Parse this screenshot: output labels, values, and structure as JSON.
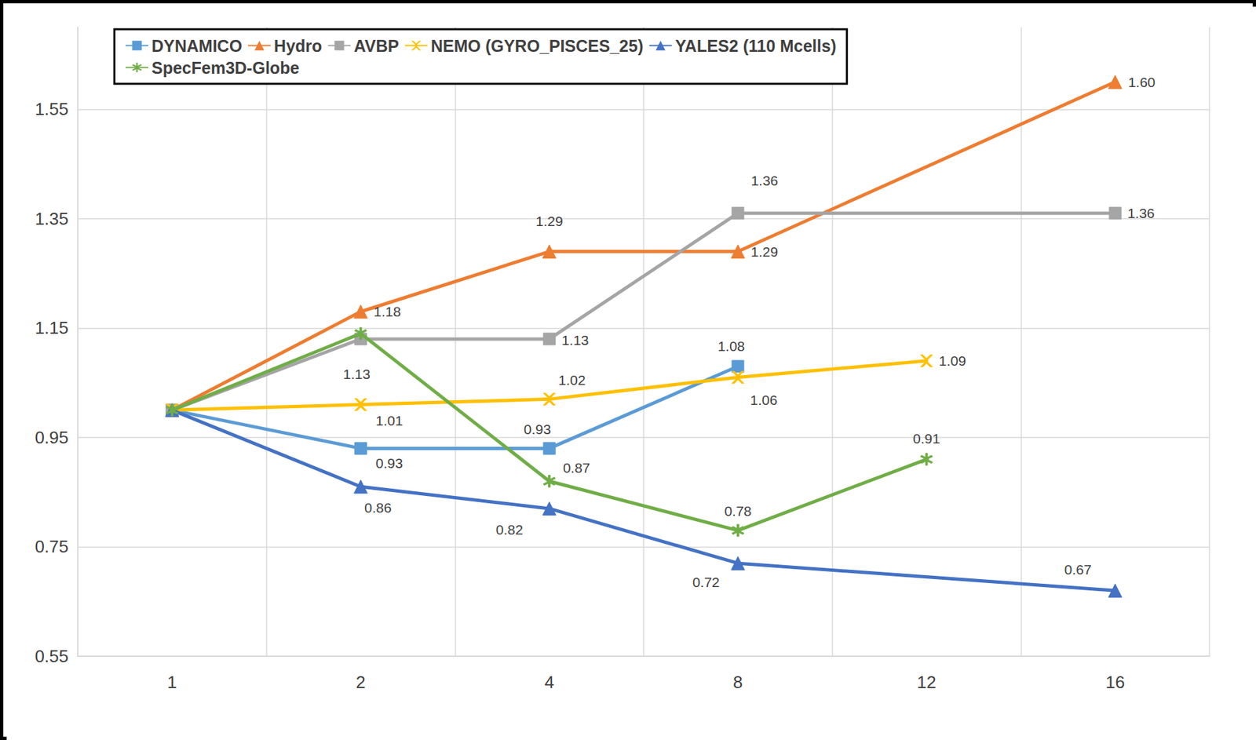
{
  "chart_data": {
    "type": "line",
    "categories": [
      "1",
      "2",
      "4",
      "8",
      "12",
      "16"
    ],
    "ylim": [
      0.55,
      1.7
    ],
    "yticks": [
      0.55,
      0.75,
      0.95,
      1.15,
      1.35,
      1.55
    ],
    "grid": true,
    "legend": "top",
    "data_labels": true,
    "series": [
      {
        "name": "DYNAMICO",
        "color": "#5b9bd5",
        "marker": "square",
        "values": [
          1.0,
          0.93,
          0.93,
          1.08,
          null,
          null
        ],
        "value_labels": [
          null,
          "0.93",
          "0.93",
          "1.08",
          null,
          null
        ]
      },
      {
        "name": "Hydro",
        "color": "#ed7d31",
        "marker": "triangle",
        "values": [
          1.0,
          1.18,
          1.29,
          1.29,
          null,
          1.6
        ],
        "value_labels": [
          null,
          "1.18",
          "1.29",
          "1.29",
          null,
          "1.60"
        ]
      },
      {
        "name": "AVBP",
        "color": "#a5a5a5",
        "marker": "square",
        "values": [
          1.0,
          1.13,
          1.13,
          1.36,
          null,
          1.36
        ],
        "value_labels": [
          null,
          "1.13",
          "1.13",
          "1.36",
          null,
          "1.36"
        ]
      },
      {
        "name": "NEMO (GYRO_PISCES_25)",
        "color": "#ffc000",
        "marker": "x",
        "values": [
          1.0,
          1.01,
          1.02,
          1.06,
          1.09,
          null
        ],
        "value_labels": [
          null,
          "1.01",
          "1.02",
          "1.06",
          "1.09",
          null
        ]
      },
      {
        "name": "YALES2 (110 Mcells)",
        "color": "#4472c4",
        "marker": "triangle",
        "values": [
          1.0,
          0.86,
          0.82,
          0.72,
          null,
          0.67
        ],
        "value_labels": [
          null,
          "0.86",
          "0.82",
          "0.72",
          null,
          "0.67"
        ]
      },
      {
        "name": "SpecFem3D-Globe",
        "color": "#70ad47",
        "marker": "asterisk",
        "values": [
          1.0,
          1.14,
          0.87,
          0.78,
          0.91,
          null
        ],
        "value_labels": [
          null,
          null,
          "0.87",
          "0.78",
          "0.91",
          null
        ]
      }
    ]
  }
}
